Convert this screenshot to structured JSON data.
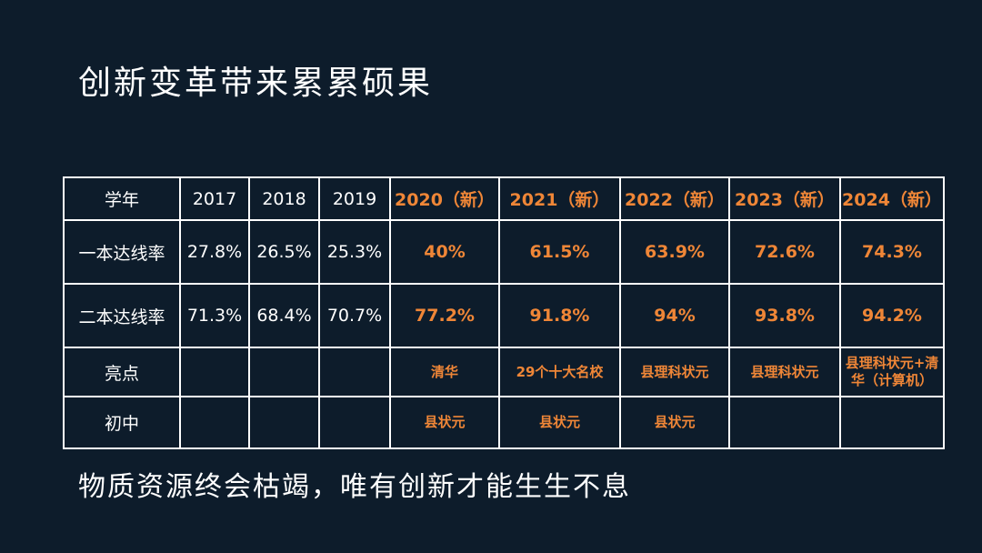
{
  "title": "创新变革带来累累硕果",
  "table": {
    "header": [
      "学年",
      "2017",
      "2018",
      "2019",
      "2020（新）",
      "2021（新）",
      "2022（新）",
      "2023（新）",
      "2024（新）"
    ],
    "rows": [
      {
        "label": "一本达线率",
        "cells": [
          "27.8%",
          "26.5%",
          "25.3%",
          "40%",
          "61.5%",
          "63.9%",
          "72.6%",
          "74.3%"
        ]
      },
      {
        "label": "二本达线率",
        "cells": [
          "71.3%",
          "68.4%",
          "70.7%",
          "77.2%",
          "91.8%",
          "94%",
          "93.8%",
          "94.2%"
        ]
      },
      {
        "label": "亮点",
        "cells": [
          "",
          "",
          "",
          "清华",
          "29个十大名校",
          "县理科状元",
          "县理科状元",
          "县理科状元+清华（计算机）"
        ]
      },
      {
        "label": "初中",
        "cells": [
          "",
          "",
          "",
          "县状元",
          "县状元",
          "县状元",
          "",
          ""
        ]
      }
    ]
  },
  "footer": "物质资源终会枯竭，唯有创新才能生生不息",
  "colors": {
    "background": "#0d1c2b",
    "text": "#ffffff",
    "highlight": "#ef8637"
  }
}
